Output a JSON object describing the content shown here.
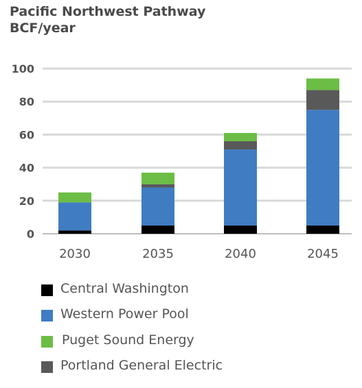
{
  "header": {
    "title": "Pacific Northwest Pathway",
    "subtitle": "BCF/year"
  },
  "chart_data": {
    "type": "bar",
    "stacked": true,
    "title": "Pacific Northwest Pathway",
    "subtitle": "BCF/year",
    "xlabel": "",
    "ylabel": "",
    "categories": [
      "2030",
      "2035",
      "2040",
      "2045"
    ],
    "ylim": [
      0,
      100
    ],
    "yticks": [
      0,
      20,
      40,
      60,
      80,
      100
    ],
    "grid": true,
    "legend_position": "bottom",
    "series": [
      {
        "name": "Central Washington",
        "color": "#000000",
        "values": [
          2,
          5,
          5,
          5
        ]
      },
      {
        "name": "Western Power Pool",
        "color": "#3f7cc2",
        "values": [
          17,
          23,
          46,
          70
        ]
      },
      {
        "name": "Portland General Electric",
        "color": "#595959",
        "values": [
          0,
          2,
          5,
          12
        ]
      },
      {
        "name": "Puget Sound Energy",
        "color": "#6cbd45",
        "values": [
          6,
          7,
          5,
          7
        ]
      }
    ]
  },
  "legend": {
    "items": [
      {
        "label": "Central Washington",
        "color": "#000000"
      },
      {
        "label": "Western Power Pool",
        "color": "#3f7cc2"
      },
      {
        "label": "Puget Sound Energy",
        "color": "#6cbd45"
      },
      {
        "label": "Portland General Electric",
        "color": "#595959"
      }
    ]
  }
}
